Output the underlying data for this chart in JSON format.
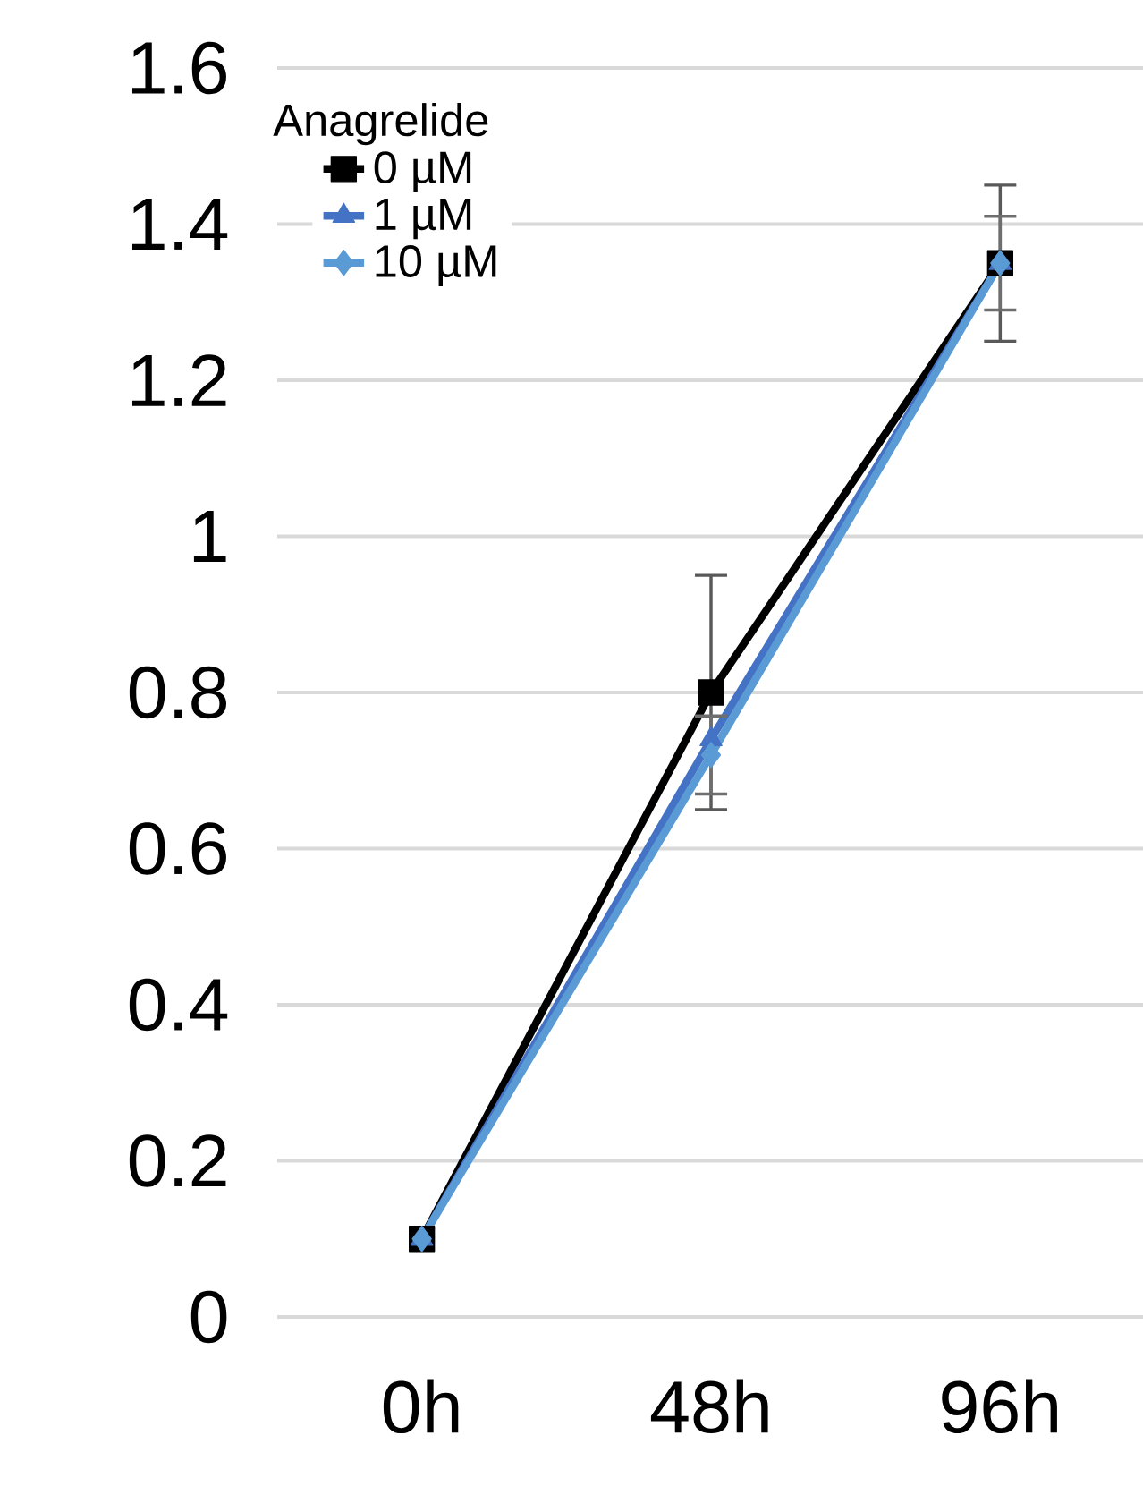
{
  "chart_data": {
    "type": "line",
    "legend_title": "Anagrelide",
    "categories": [
      "0h",
      "48h",
      "96h"
    ],
    "series": [
      {
        "name": "0 µM",
        "color": "#000000",
        "marker": "square",
        "values": [
          0.1,
          0.8,
          1.35
        ],
        "errors": [
          null,
          0.15,
          0.1
        ]
      },
      {
        "name": "1 µM",
        "color": "#4472c4",
        "marker": "triangle",
        "values": [
          0.1,
          0.74,
          1.35
        ]
      },
      {
        "name": "10 µM",
        "color": "#5b9bd5",
        "marker": "diamond",
        "values": [
          0.1,
          0.72,
          1.35
        ],
        "errors": [
          null,
          0.05,
          0.06
        ]
      }
    ],
    "ylim": [
      0,
      1.6
    ],
    "yticks": [
      0,
      0.2,
      0.4,
      0.6,
      0.8,
      1,
      1.2,
      1.4,
      1.6
    ],
    "grid": "y",
    "legend": "top left"
  }
}
